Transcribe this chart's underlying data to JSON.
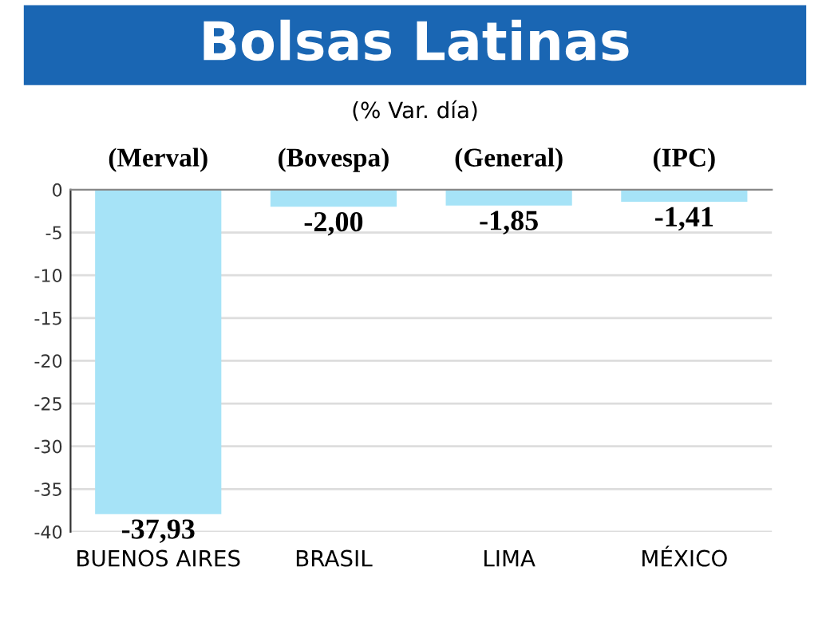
{
  "chart_data": {
    "type": "bar",
    "title": "Bolsas Latinas",
    "subtitle": "(% Var. día)",
    "categories": [
      "BUENOS AIRES",
      "BRASIL",
      "LIMA",
      "MÉXICO"
    ],
    "values": [
      -37.93,
      -2.0,
      -1.85,
      -1.41
    ],
    "value_labels": [
      "-37,93",
      "-2,00",
      "-1,85",
      "-1,41"
    ],
    "color": "#a6e3f7",
    "annotations": [
      "(Merval)",
      "(Bovespa)",
      "(General)",
      "(IPC)"
    ],
    "ylim": [
      -40,
      0
    ],
    "yticks": [
      0,
      -5,
      -10,
      -15,
      -20,
      -25,
      -30,
      -35,
      -40
    ],
    "grid": "y"
  }
}
